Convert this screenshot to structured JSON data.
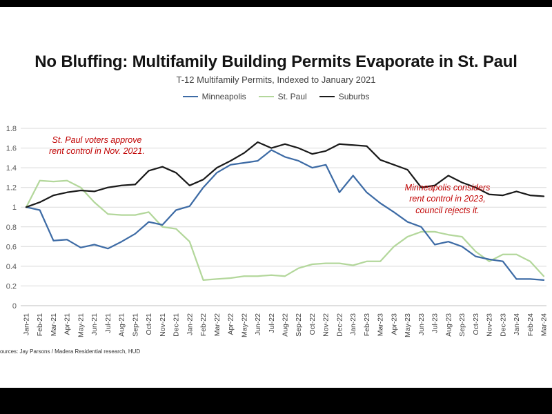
{
  "page": {
    "title": "No Bluffing: Multifamily Building Permits Evaporate in St. Paul",
    "subtitle": "T-12 Multifamily Permits, Indexed to January 2021",
    "source": "ources: Jay Parsons / Madera Residential research, HUD"
  },
  "annotations": {
    "stpaul": "St. Paul voters approve\nrent control in Nov. 2021.",
    "minneapolis": "Minneapolis considers\nrent control in 2023,\ncouncil rejects it."
  },
  "chart_data": {
    "type": "line",
    "title": "No Bluffing: Multifamily Building Permits Evaporate in St. Paul",
    "subtitle": "T-12 Multifamily Permits, Indexed to January 2021",
    "xlabel": "",
    "ylabel": "",
    "ylim": [
      0,
      1.8
    ],
    "ytick_step": 0.2,
    "grid": true,
    "legend_position": "top",
    "annotations": [
      "St. Paul voters approve rent control in Nov. 2021.",
      "Minneapolis considers rent control in 2023, council rejects it."
    ],
    "categories": [
      "Jan-21",
      "Feb-21",
      "Mar-21",
      "Apr-21",
      "May-21",
      "Jun-21",
      "Jul-21",
      "Aug-21",
      "Sep-21",
      "Oct-21",
      "Nov-21",
      "Dec-21",
      "Jan-22",
      "Feb-22",
      "Mar-22",
      "Apr-22",
      "May-22",
      "Jun-22",
      "Jul-22",
      "Aug-22",
      "Sep-22",
      "Oct-22",
      "Nov-22",
      "Dec-22",
      "Jan-23",
      "Feb-23",
      "Mar-23",
      "Apr-23",
      "May-23",
      "Jun-23",
      "Jul-23",
      "Aug-23",
      "Sep-23",
      "Oct-23",
      "Nov-23",
      "Dec-23",
      "Jan-24",
      "Feb-24",
      "Mar-24"
    ],
    "series": [
      {
        "name": "Minneapolis",
        "color": "#3d6ba5",
        "values": [
          1.0,
          0.97,
          0.66,
          0.67,
          0.59,
          0.62,
          0.58,
          0.65,
          0.73,
          0.85,
          0.82,
          0.97,
          1.01,
          1.2,
          1.35,
          1.43,
          1.45,
          1.47,
          1.58,
          1.51,
          1.47,
          1.4,
          1.43,
          1.15,
          1.32,
          1.15,
          1.04,
          0.95,
          0.85,
          0.8,
          0.62,
          0.65,
          0.6,
          0.5,
          0.47,
          0.45,
          0.27,
          0.27,
          0.26
        ]
      },
      {
        "name": "St. Paul",
        "color": "#b3d79b",
        "values": [
          1.0,
          1.27,
          1.26,
          1.27,
          1.2,
          1.05,
          0.93,
          0.92,
          0.92,
          0.95,
          0.8,
          0.78,
          0.65,
          0.26,
          0.27,
          0.28,
          0.3,
          0.3,
          0.31,
          0.3,
          0.38,
          0.42,
          0.43,
          0.43,
          0.41,
          0.45,
          0.45,
          0.6,
          0.7,
          0.75,
          0.75,
          0.72,
          0.7,
          0.55,
          0.45,
          0.52,
          0.52,
          0.45,
          0.3
        ]
      },
      {
        "name": "Suburbs",
        "color": "#1a1a1a",
        "values": [
          1.0,
          1.05,
          1.12,
          1.15,
          1.17,
          1.16,
          1.2,
          1.22,
          1.23,
          1.37,
          1.41,
          1.35,
          1.22,
          1.28,
          1.4,
          1.47,
          1.55,
          1.66,
          1.6,
          1.64,
          1.6,
          1.54,
          1.57,
          1.64,
          1.63,
          1.62,
          1.48,
          1.43,
          1.38,
          1.2,
          1.22,
          1.32,
          1.25,
          1.2,
          1.13,
          1.12,
          1.16,
          1.12,
          1.11
        ]
      }
    ]
  }
}
